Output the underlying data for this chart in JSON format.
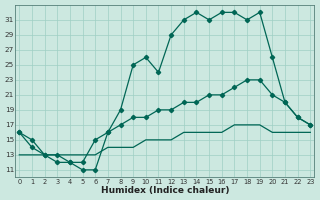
{
  "xlabel": "Humidex (Indice chaleur)",
  "bg_color": "#cce8e0",
  "grid_color": "#9fcfc4",
  "line_color": "#006655",
  "x_ticks": [
    0,
    1,
    2,
    3,
    4,
    5,
    6,
    7,
    8,
    9,
    10,
    11,
    12,
    13,
    14,
    15,
    16,
    17,
    18,
    19,
    20,
    21,
    22,
    23
  ],
  "y_ticks": [
    11,
    13,
    15,
    17,
    19,
    21,
    23,
    25,
    27,
    29,
    31
  ],
  "xlim": [
    -0.3,
    23.3
  ],
  "ylim": [
    10.0,
    33.0
  ],
  "line1_x": [
    0,
    1,
    2,
    3,
    4,
    5,
    6,
    7,
    8,
    9,
    10,
    11,
    12,
    13,
    14,
    15,
    16,
    17,
    18,
    19,
    20,
    21,
    22,
    23
  ],
  "line1_y": [
    16,
    15,
    13,
    13,
    12,
    11,
    11,
    16,
    19,
    25,
    26,
    24,
    29,
    31,
    32,
    31,
    32,
    32,
    31,
    32,
    26,
    20,
    18,
    17
  ],
  "line2_x": [
    0,
    1,
    2,
    3,
    4,
    5,
    6,
    7,
    8,
    9,
    10,
    11,
    12,
    13,
    14,
    15,
    16,
    17,
    18,
    19,
    20,
    21,
    22,
    23
  ],
  "line2_y": [
    16,
    14,
    13,
    12,
    12,
    12,
    15,
    16,
    17,
    18,
    18,
    19,
    19,
    20,
    20,
    21,
    21,
    22,
    23,
    23,
    21,
    20,
    18,
    17
  ],
  "line3_x": [
    0,
    1,
    2,
    3,
    4,
    5,
    6,
    7,
    8,
    9,
    10,
    11,
    12,
    13,
    14,
    15,
    16,
    17,
    18,
    19,
    20,
    21,
    22,
    23
  ],
  "line3_y": [
    13,
    13,
    13,
    13,
    13,
    13,
    13,
    14,
    14,
    14,
    15,
    15,
    15,
    16,
    16,
    16,
    16,
    17,
    17,
    17,
    16,
    16,
    16,
    16
  ]
}
